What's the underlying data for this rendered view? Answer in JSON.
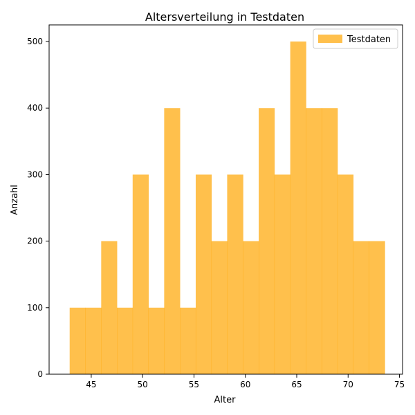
{
  "chart_data": {
    "type": "bar",
    "title": "Altersverteilung in Testdaten",
    "xlabel": "Alter",
    "ylabel": "Anzahl",
    "xlim": [
      40.9,
      75.3
    ],
    "ylim": [
      0,
      525
    ],
    "xticks": [
      45,
      50,
      55,
      60,
      65,
      70,
      75
    ],
    "yticks": [
      0,
      100,
      200,
      300,
      400,
      500
    ],
    "bins": [
      {
        "x0": 42.9,
        "x1": 44.43,
        "value": 100
      },
      {
        "x0": 44.43,
        "x1": 45.97,
        "value": 100
      },
      {
        "x0": 45.97,
        "x1": 47.5,
        "value": 200
      },
      {
        "x0": 47.5,
        "x1": 49.03,
        "value": 100
      },
      {
        "x0": 49.03,
        "x1": 50.57,
        "value": 300
      },
      {
        "x0": 50.57,
        "x1": 52.1,
        "value": 100
      },
      {
        "x0": 52.1,
        "x1": 53.63,
        "value": 400
      },
      {
        "x0": 53.63,
        "x1": 55.17,
        "value": 100
      },
      {
        "x0": 55.17,
        "x1": 56.7,
        "value": 300
      },
      {
        "x0": 56.7,
        "x1": 58.23,
        "value": 200
      },
      {
        "x0": 58.23,
        "x1": 59.77,
        "value": 300
      },
      {
        "x0": 59.77,
        "x1": 61.3,
        "value": 200
      },
      {
        "x0": 61.3,
        "x1": 62.83,
        "value": 400
      },
      {
        "x0": 62.83,
        "x1": 64.37,
        "value": 300
      },
      {
        "x0": 64.37,
        "x1": 65.9,
        "value": 500
      },
      {
        "x0": 65.9,
        "x1": 67.43,
        "value": 400
      },
      {
        "x0": 67.43,
        "x1": 68.97,
        "value": 400
      },
      {
        "x0": 68.97,
        "x1": 70.5,
        "value": 300
      },
      {
        "x0": 70.5,
        "x1": 72.03,
        "value": 200
      },
      {
        "x0": 72.03,
        "x1": 73.57,
        "value": 200
      }
    ],
    "series": [
      {
        "name": "Testdaten",
        "color": "#ffa500",
        "alpha": 0.7
      }
    ],
    "legend_position": "top-right",
    "grid": false
  }
}
